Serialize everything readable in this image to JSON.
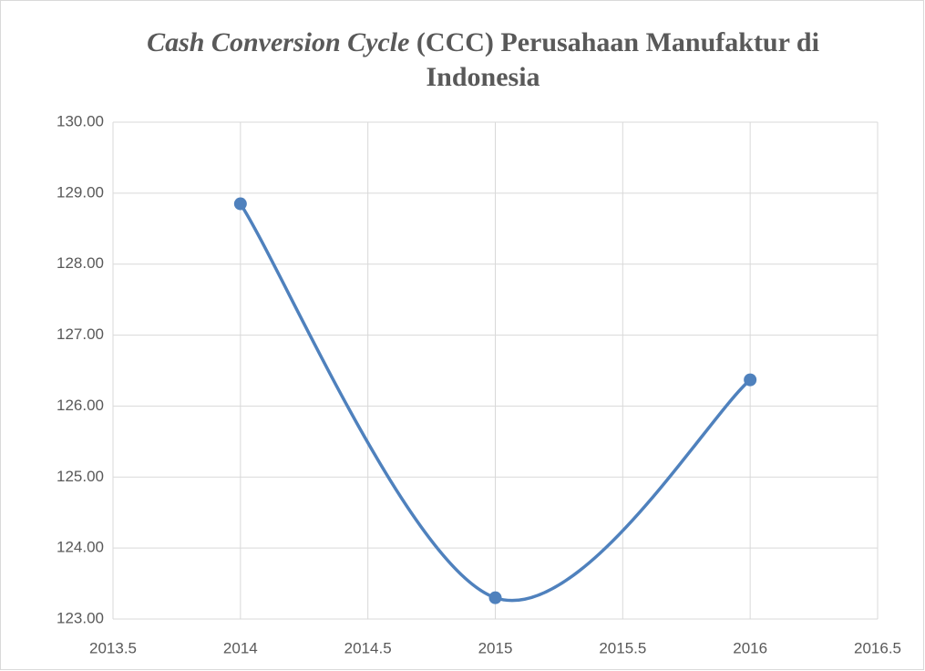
{
  "chart_data": {
    "type": "scatter-smooth",
    "title_italic": "Cash Conversion Cycle",
    "title": "(CCC) Perusahaan Manufaktur di Indonesia",
    "x": [
      2014,
      2015,
      2016
    ],
    "series": [
      {
        "color": "#4f81bd",
        "values": [
          128.85,
          123.3,
          126.37
        ]
      }
    ],
    "xlim": [
      2013.5,
      2016.5
    ],
    "xticks": [
      2013.5,
      2014,
      2014.5,
      2015,
      2015.5,
      2016,
      2016.5
    ],
    "ylim": [
      123,
      130
    ],
    "yticks": [
      {
        "value": 123,
        "label": "123.00"
      },
      {
        "value": 124,
        "label": "124.00"
      },
      {
        "value": 125,
        "label": "125.00"
      },
      {
        "value": 126,
        "label": "126.00"
      },
      {
        "value": 127,
        "label": "127.00"
      },
      {
        "value": 128,
        "label": "128.00"
      },
      {
        "value": 129,
        "label": "129.00"
      },
      {
        "value": 130,
        "label": "130.00"
      }
    ],
    "grid": true
  }
}
